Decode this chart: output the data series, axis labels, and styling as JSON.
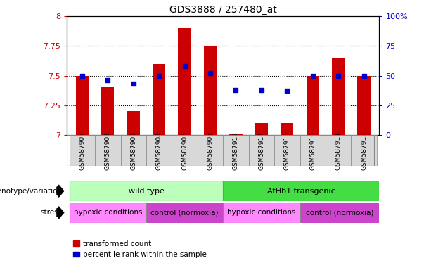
{
  "title": "GDS3888 / 257480_at",
  "samples": [
    "GSM587907",
    "GSM587908",
    "GSM587909",
    "GSM587904",
    "GSM587905",
    "GSM587906",
    "GSM587913",
    "GSM587914",
    "GSM587915",
    "GSM587910",
    "GSM587911",
    "GSM587912"
  ],
  "red_values": [
    7.5,
    7.4,
    7.2,
    7.6,
    7.9,
    7.75,
    7.01,
    7.1,
    7.1,
    7.5,
    7.65,
    7.5
  ],
  "blue_values": [
    50,
    46,
    43,
    50,
    58,
    52,
    38,
    38,
    37,
    50,
    50,
    50
  ],
  "ylim": [
    7.0,
    8.0
  ],
  "y2lim": [
    0,
    100
  ],
  "yticks": [
    7.0,
    7.25,
    7.5,
    7.75,
    8.0
  ],
  "y2ticks": [
    0,
    25,
    50,
    75,
    100
  ],
  "ytick_labels": [
    "7",
    "7.25",
    "7.5",
    "7.75",
    "8"
  ],
  "y2tick_labels": [
    "0",
    "25",
    "50",
    "75",
    "100%"
  ],
  "red_color": "#cc0000",
  "blue_color": "#0000cc",
  "bar_width": 0.5,
  "genotype_labels": [
    {
      "label": "wild type",
      "start": 0,
      "end": 5,
      "color": "#bbffbb"
    },
    {
      "label": "AtHb1 transgenic",
      "start": 6,
      "end": 11,
      "color": "#44dd44"
    }
  ],
  "stress_labels": [
    {
      "label": "hypoxic conditions",
      "start": 0,
      "end": 2,
      "color": "#ff88ff"
    },
    {
      "label": "control (normoxia)",
      "start": 3,
      "end": 5,
      "color": "#cc44cc"
    },
    {
      "label": "hypoxic conditions",
      "start": 6,
      "end": 8,
      "color": "#ff88ff"
    },
    {
      "label": "control (normoxia)",
      "start": 9,
      "end": 11,
      "color": "#cc44cc"
    }
  ],
  "legend_red_label": "transformed count",
  "legend_blue_label": "percentile rank within the sample",
  "genotype_label_text": "genotype/variation",
  "stress_label_text": "stress",
  "tick_label_color_left": "#cc0000",
  "tick_label_color_right": "#0000cc",
  "bg_color": "#ffffff",
  "sample_cell_color": "#d8d8d8"
}
